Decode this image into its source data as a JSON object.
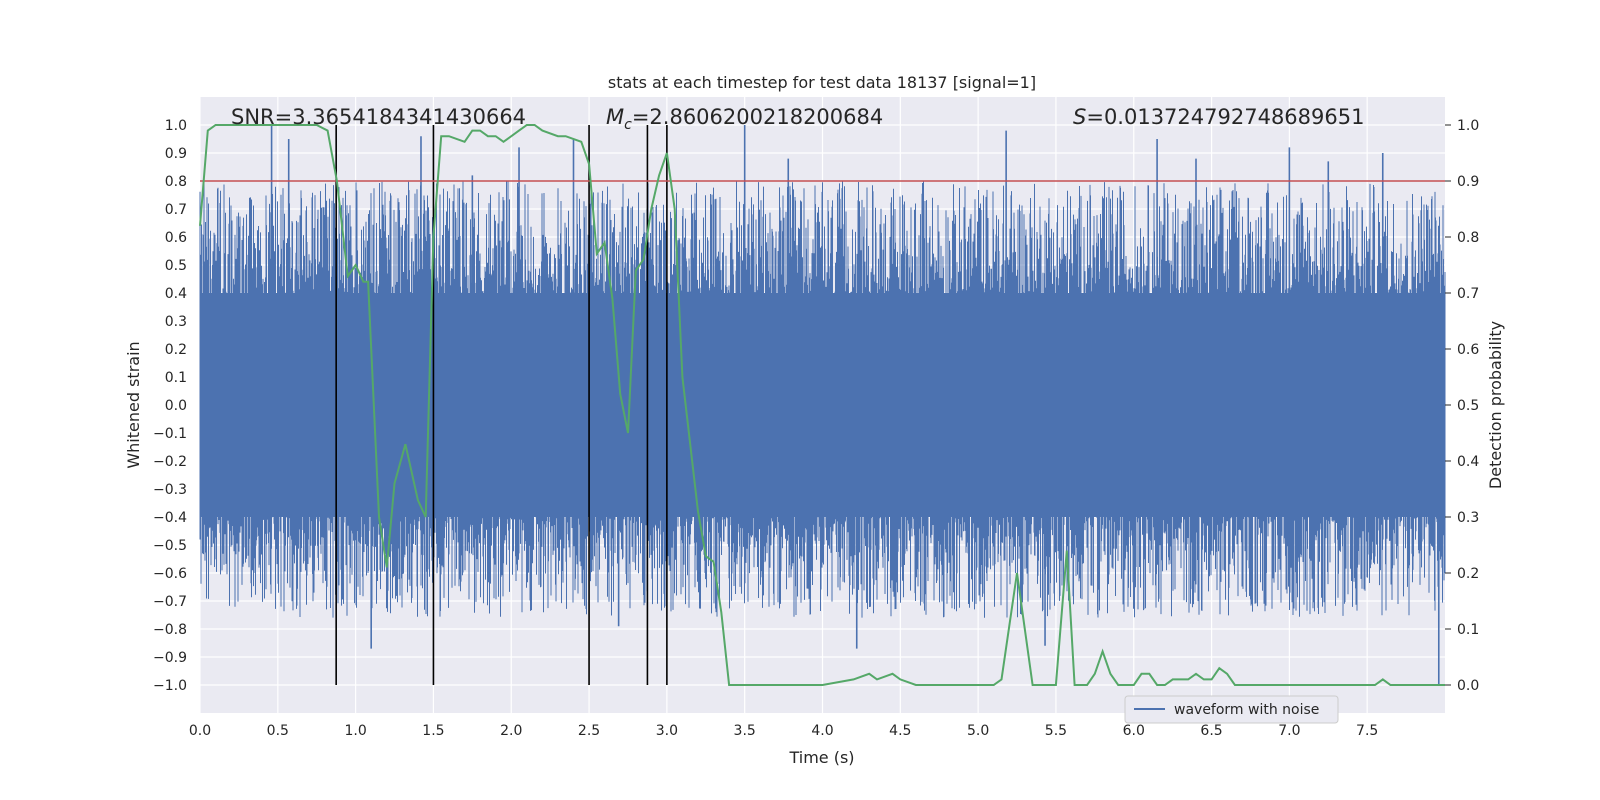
{
  "chart_data": {
    "type": "line",
    "title": "stats at each timestep for test data 18137 [signal=1]",
    "xlabel": "Time (s)",
    "ylabel_left": "Whitened strain",
    "ylabel_right": "Detection probability",
    "xlim": [
      0.0,
      8.0
    ],
    "ylim_left": [
      -1.1,
      1.1
    ],
    "ylim_right": [
      -0.05,
      1.05
    ],
    "xticks": [
      "0.0",
      "0.5",
      "1.0",
      "1.5",
      "2.0",
      "2.5",
      "3.0",
      "3.5",
      "4.0",
      "4.5",
      "5.0",
      "5.5",
      "6.0",
      "6.5",
      "7.0",
      "7.5"
    ],
    "yticks_left": [
      "-1.0",
      "-0.9",
      "-0.8",
      "-0.7",
      "-0.6",
      "-0.5",
      "-0.4",
      "-0.3",
      "-0.2",
      "-0.1",
      "0.0",
      "0.1",
      "0.2",
      "0.3",
      "0.4",
      "0.5",
      "0.6",
      "0.7",
      "0.8",
      "0.9",
      "1.0"
    ],
    "yticks_right": [
      "0.0",
      "0.1",
      "0.2",
      "0.3",
      "0.4",
      "0.5",
      "0.6",
      "0.7",
      "0.8",
      "0.9",
      "1.0"
    ],
    "grid": true,
    "annotations": {
      "snr": "SNR=3.3654184341430664",
      "mc_prefix": "M",
      "mc_sub": "c",
      "mc_value": "=2.8606200218200684",
      "s_prefix": "S",
      "s_value": "=0.013724792748689651"
    },
    "threshold": {
      "value": 0.9,
      "axis": "right",
      "color": "#c44e52"
    },
    "vertical_lines": [
      0.875,
      1.5,
      2.5,
      2.875,
      3.0
    ],
    "vertical_line_color": "#000000",
    "legend": {
      "label": "waveform with noise",
      "location": "lower right"
    },
    "series": [
      {
        "name": "waveform with noise",
        "axis": "left",
        "color": "#4c72b0",
        "style": "noise band",
        "band_envelope": 0.4,
        "seed": 18137,
        "spikes": [
          {
            "t": 0.46,
            "v": 1.0
          },
          {
            "t": 0.57,
            "v": 0.95
          },
          {
            "t": 1.1,
            "v": -0.87
          },
          {
            "t": 1.42,
            "v": 0.96
          },
          {
            "t": 1.75,
            "v": 0.82
          },
          {
            "t": 2.05,
            "v": 0.92
          },
          {
            "t": 2.4,
            "v": 0.95
          },
          {
            "t": 2.69,
            "v": -0.79
          },
          {
            "t": 3.5,
            "v": 1.0
          },
          {
            "t": 3.78,
            "v": 0.88
          },
          {
            "t": 4.22,
            "v": -0.87
          },
          {
            "t": 5.18,
            "v": 0.98
          },
          {
            "t": 5.43,
            "v": -0.86
          },
          {
            "t": 6.15,
            "v": 0.95
          },
          {
            "t": 6.4,
            "v": 0.88
          },
          {
            "t": 7.0,
            "v": 0.92
          },
          {
            "t": 7.25,
            "v": 0.87
          },
          {
            "t": 7.6,
            "v": 0.9
          },
          {
            "t": 7.96,
            "v": -1.0
          }
        ]
      },
      {
        "name": "detection probability",
        "axis": "right",
        "color": "#55a868",
        "x": [
          0.0,
          0.05,
          0.1,
          0.2,
          0.3,
          0.4,
          0.5,
          0.6,
          0.7,
          0.75,
          0.82,
          0.88,
          0.95,
          1.0,
          1.05,
          1.08,
          1.15,
          1.2,
          1.25,
          1.32,
          1.4,
          1.45,
          1.5,
          1.55,
          1.6,
          1.7,
          1.75,
          1.8,
          1.85,
          1.9,
          1.95,
          2.0,
          2.05,
          2.1,
          2.15,
          2.2,
          2.3,
          2.35,
          2.45,
          2.5,
          2.55,
          2.6,
          2.65,
          2.7,
          2.75,
          2.8,
          2.85,
          2.9,
          2.95,
          3.0,
          3.05,
          3.1,
          3.2,
          3.25,
          3.3,
          3.35,
          3.4,
          3.5,
          3.75,
          4.0,
          4.2,
          4.3,
          4.35,
          4.45,
          4.5,
          4.6,
          4.8,
          4.95,
          5.1,
          5.15,
          5.25,
          5.35,
          5.4,
          5.5,
          5.57,
          5.62,
          5.7,
          5.75,
          5.8,
          5.85,
          5.9,
          5.95,
          6.0,
          6.05,
          6.1,
          6.15,
          6.2,
          6.25,
          6.3,
          6.35,
          6.4,
          6.45,
          6.5,
          6.55,
          6.6,
          6.65,
          6.7,
          6.75,
          6.9,
          7.0,
          7.2,
          7.4,
          7.5,
          7.55,
          7.6,
          7.65,
          7.8,
          8.0
        ],
        "values": [
          0.82,
          0.99,
          1.0,
          1.0,
          1.0,
          1.0,
          1.0,
          1.0,
          1.0,
          1.0,
          0.99,
          0.9,
          0.73,
          0.75,
          0.72,
          0.72,
          0.3,
          0.21,
          0.36,
          0.43,
          0.33,
          0.3,
          0.8,
          0.98,
          0.98,
          0.97,
          0.99,
          0.99,
          0.98,
          0.98,
          0.97,
          0.98,
          0.99,
          1.0,
          1.0,
          0.99,
          0.98,
          0.98,
          0.97,
          0.93,
          0.77,
          0.79,
          0.69,
          0.52,
          0.45,
          0.74,
          0.76,
          0.85,
          0.91,
          0.95,
          0.85,
          0.55,
          0.31,
          0.23,
          0.22,
          0.13,
          0.0,
          0.0,
          0.0,
          0.0,
          0.01,
          0.02,
          0.01,
          0.02,
          0.01,
          0.0,
          0.0,
          0.0,
          0.0,
          0.01,
          0.2,
          0.0,
          0.0,
          0.0,
          0.24,
          0.0,
          0.0,
          0.02,
          0.06,
          0.02,
          0.0,
          0.0,
          0.0,
          0.02,
          0.02,
          0.0,
          0.0,
          0.01,
          0.01,
          0.01,
          0.02,
          0.01,
          0.01,
          0.03,
          0.02,
          0.0,
          0.0,
          0.0,
          0.0,
          0.0,
          0.0,
          0.0,
          0.0,
          0.0,
          0.01,
          0.0,
          0.0,
          0.0
        ]
      }
    ]
  }
}
